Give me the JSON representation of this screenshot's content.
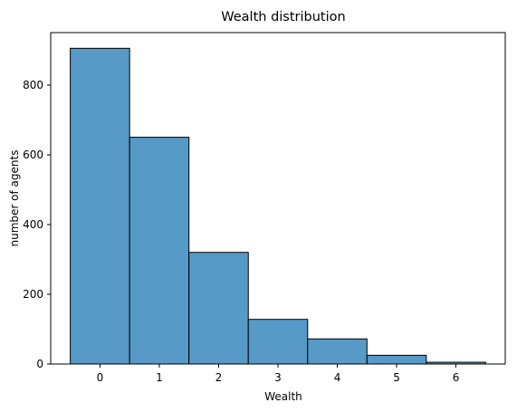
{
  "chart_data": {
    "type": "bar",
    "title": "Wealth distribution",
    "xlabel": "Wealth",
    "ylabel": "number of agents",
    "categories": [
      "0",
      "1",
      "2",
      "3",
      "4",
      "5",
      "6"
    ],
    "values": [
      905,
      650,
      320,
      128,
      72,
      25,
      5
    ],
    "xlim": [
      -0.83,
      6.83
    ],
    "ylim": [
      0,
      950
    ],
    "x_ticks": [
      "0",
      "1",
      "2",
      "3",
      "4",
      "5",
      "6"
    ],
    "y_ticks": [
      "0",
      "200",
      "400",
      "600",
      "800"
    ],
    "bar_color": "#5799c7",
    "edge_color": "#000000",
    "grid": false,
    "legend": null
  }
}
